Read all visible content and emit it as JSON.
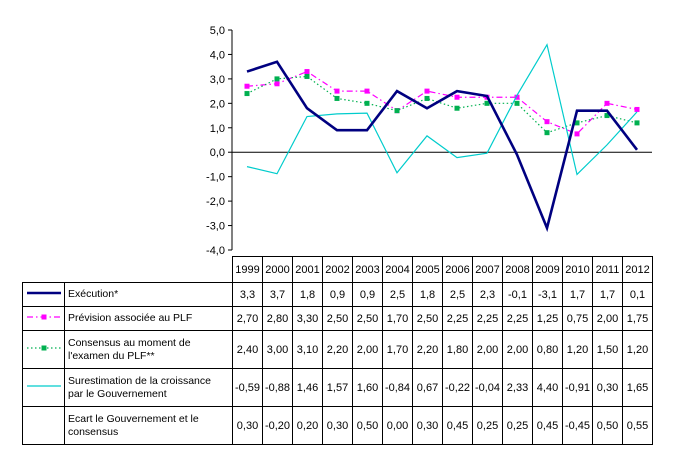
{
  "chart_data": {
    "type": "line",
    "title": "",
    "categories": [
      "1999",
      "2000",
      "2001",
      "2002",
      "2003",
      "2004",
      "2005",
      "2006",
      "2007",
      "2008",
      "2009",
      "2010",
      "2011",
      "2012"
    ],
    "ylim": [
      -4.0,
      5.0
    ],
    "ytick_step": 1.0,
    "ytick_labels": [
      "5,0",
      "4,0",
      "3,0",
      "2,0",
      "1,0",
      "0,0",
      "-1,0",
      "-2,0",
      "-3,0",
      "-4,0"
    ],
    "grid": false,
    "legend_position": "data-table-below",
    "series": [
      {
        "id": "execution",
        "name": "Exécution*",
        "color": "#000080",
        "line_style": "solid",
        "line_width": 2.6,
        "marker": "none",
        "plotted": true,
        "values": [
          3.3,
          3.7,
          1.8,
          0.9,
          0.9,
          2.5,
          1.8,
          2.5,
          2.3,
          -0.1,
          -3.1,
          1.7,
          1.7,
          0.1
        ],
        "display": [
          "3,3",
          "3,7",
          "1,8",
          "0,9",
          "0,9",
          "2,5",
          "1,8",
          "2,5",
          "2,3",
          "-0,1",
          "-3,1",
          "1,7",
          "1,7",
          "0,1"
        ]
      },
      {
        "id": "prevision-plf",
        "name": "Prévision associée au PLF",
        "color": "#FF00FF",
        "line_style": "dashdot",
        "line_width": 1.2,
        "marker": "square",
        "plotted": true,
        "values": [
          2.7,
          2.8,
          3.3,
          2.5,
          2.5,
          1.7,
          2.5,
          2.25,
          2.25,
          2.25,
          1.25,
          0.75,
          2.0,
          1.75
        ],
        "display": [
          "2,70",
          "2,80",
          "3,30",
          "2,50",
          "2,50",
          "1,70",
          "2,50",
          "2,25",
          "2,25",
          "2,25",
          "1,25",
          "0,75",
          "2,00",
          "1,75"
        ]
      },
      {
        "id": "consensus",
        "name": "Consensus au moment de l'examen du PLF**",
        "color": "#00B050",
        "line_style": "dot",
        "line_width": 1.2,
        "marker": "square",
        "plotted": true,
        "values": [
          2.4,
          3.0,
          3.1,
          2.2,
          2.0,
          1.7,
          2.2,
          1.8,
          2.0,
          2.0,
          0.8,
          1.2,
          1.5,
          1.2
        ],
        "display": [
          "2,40",
          "3,00",
          "3,10",
          "2,20",
          "2,00",
          "1,70",
          "2,20",
          "1,80",
          "2,00",
          "2,00",
          "0,80",
          "1,20",
          "1,50",
          "1,20"
        ]
      },
      {
        "id": "surestimation",
        "name": "Surestimation de la croissance par le Gouvernement",
        "color": "#00CCCC",
        "line_style": "solid",
        "line_width": 1.2,
        "marker": "none",
        "plotted": true,
        "values": [
          -0.59,
          -0.88,
          1.46,
          1.57,
          1.6,
          -0.84,
          0.67,
          -0.22,
          -0.04,
          2.33,
          4.4,
          -0.91,
          0.3,
          1.65
        ],
        "display": [
          "-0,59",
          "-0,88",
          "1,46",
          "1,57",
          "1,60",
          "-0,84",
          "0,67",
          "-0,22",
          "-0,04",
          "2,33",
          "4,40",
          "-0,91",
          "0,30",
          "1,65"
        ]
      },
      {
        "id": "ecart",
        "name": "Ecart le Gouvernement et le consensus",
        "color": "#000000",
        "line_style": "none",
        "line_width": 0,
        "marker": "none",
        "plotted": false,
        "values": [
          0.3,
          -0.2,
          0.2,
          0.3,
          0.5,
          0.0,
          0.3,
          0.45,
          0.25,
          0.25,
          0.45,
          -0.45,
          0.5,
          0.55
        ],
        "display": [
          "0,30",
          "-0,20",
          "0,20",
          "0,30",
          "0,50",
          "0,00",
          "0,30",
          "0,45",
          "0,25",
          "0,25",
          "0,45",
          "-0,45",
          "0,50",
          "0,55"
        ]
      }
    ]
  }
}
